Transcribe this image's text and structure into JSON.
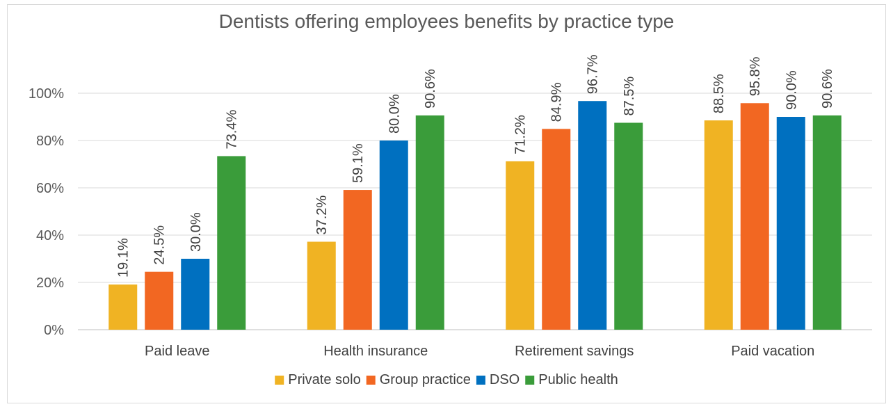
{
  "chart_data": {
    "type": "bar",
    "title": "Dentists offering employees benefits by practice type",
    "categories": [
      "Paid leave",
      "Health insurance",
      "Retirement savings",
      "Paid vacation"
    ],
    "series": [
      {
        "name": "Private solo",
        "color": "#F0B323",
        "values": [
          19.1,
          37.2,
          71.2,
          88.5
        ],
        "labels": [
          "19.1%",
          "37.2%",
          "71.2%",
          "88.5%"
        ]
      },
      {
        "name": "Group practice",
        "color": "#F26722",
        "values": [
          24.5,
          59.1,
          84.9,
          95.8
        ],
        "labels": [
          "24.5%",
          "59.1%",
          "84.9%",
          "95.8%"
        ]
      },
      {
        "name": "DSO",
        "color": "#0070C0",
        "values": [
          30.0,
          80.0,
          96.7,
          90.0
        ],
        "labels": [
          "30.0%",
          "80.0%",
          "96.7%",
          "90.0%"
        ]
      },
      {
        "name": "Public health",
        "color": "#3A9C3A",
        "values": [
          73.4,
          90.6,
          87.5,
          90.6
        ],
        "labels": [
          "73.4%",
          "90.6%",
          "87.5%",
          "90.6%"
        ]
      }
    ],
    "ylim": [
      0,
      100
    ],
    "yticks": [
      0,
      20,
      40,
      60,
      80,
      100
    ],
    "ytick_labels": [
      "0%",
      "20%",
      "40%",
      "60%",
      "80%",
      "100%"
    ],
    "xlabel": "",
    "ylabel": "",
    "grid": true,
    "legend_position": "bottom"
  }
}
